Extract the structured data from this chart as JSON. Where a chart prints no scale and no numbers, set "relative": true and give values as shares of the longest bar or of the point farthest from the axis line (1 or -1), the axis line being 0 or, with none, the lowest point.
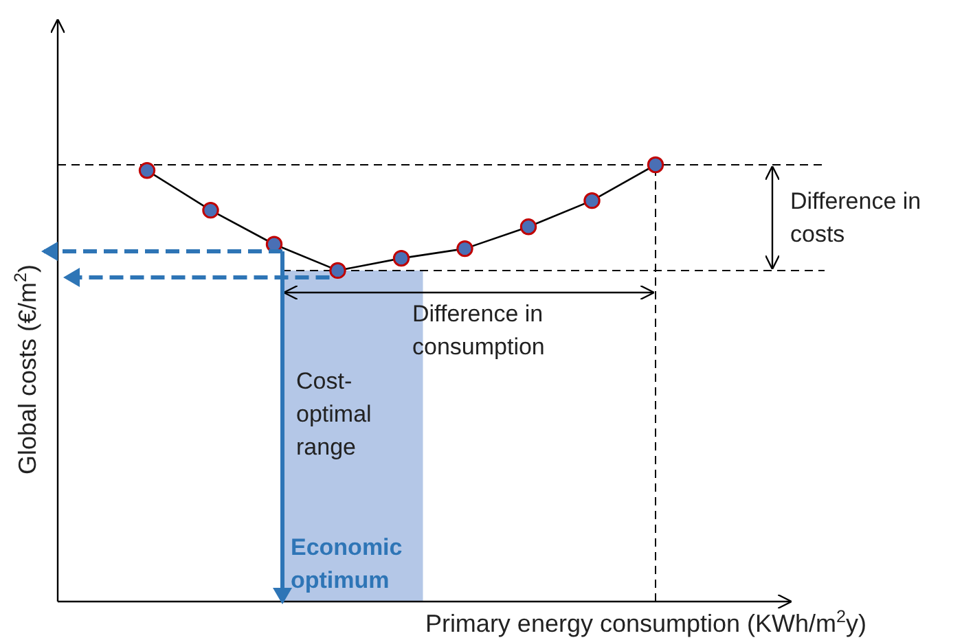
{
  "chart_data": {
    "type": "line",
    "relative": true,
    "xlabel": "Primary energy consumption (KWh/m$^{2}$y)",
    "ylabel": "Global costs (€/m$^{2}$)",
    "marker": "circle",
    "categories": [
      null,
      null,
      null,
      null,
      null,
      null,
      null,
      null,
      null
    ],
    "series": [
      {
        "color": "#000000",
        "values": [
          0.987,
          0.896,
          0.818,
          0.758,
          0.786,
          0.808,
          0.858,
          0.918,
          1
        ]
      }
    ],
    "annotations": [
      "Difference in costs",
      "Difference in consumption",
      "Cost-optimal range",
      "Economic optimum"
    ]
  }
}
